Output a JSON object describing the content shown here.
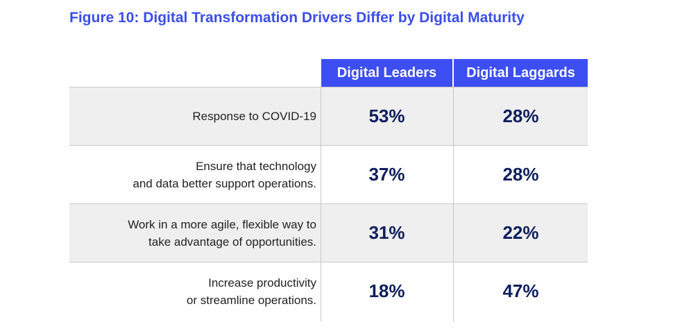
{
  "chart_data": {
    "type": "table",
    "title": "Figure 10: Digital Transformation Drivers Differ by Digital Maturity",
    "columns": [
      "Digital Leaders",
      "Digital Laggards"
    ],
    "rows": [
      {
        "label_lines": [
          "Response to COVID-19"
        ],
        "values": [
          "53%",
          "28%"
        ]
      },
      {
        "label_lines": [
          "Ensure that technology",
          "and data better support operations."
        ],
        "values": [
          "37%",
          "28%"
        ]
      },
      {
        "label_lines": [
          "Work in a more agile, flexible way to",
          "take advantage of opportunities."
        ],
        "values": [
          "31%",
          "22%"
        ]
      },
      {
        "label_lines": [
          "Increase productivity",
          "or streamline operations."
        ],
        "values": [
          "18%",
          "47%"
        ]
      }
    ]
  },
  "colors": {
    "title": "#3b4ee8",
    "header_bg": "#3d4ef2",
    "header_text": "#ffffff",
    "value_text": "#0e1f5c",
    "row_shade": "#efefef",
    "grid_line": "#c8c8c8"
  }
}
